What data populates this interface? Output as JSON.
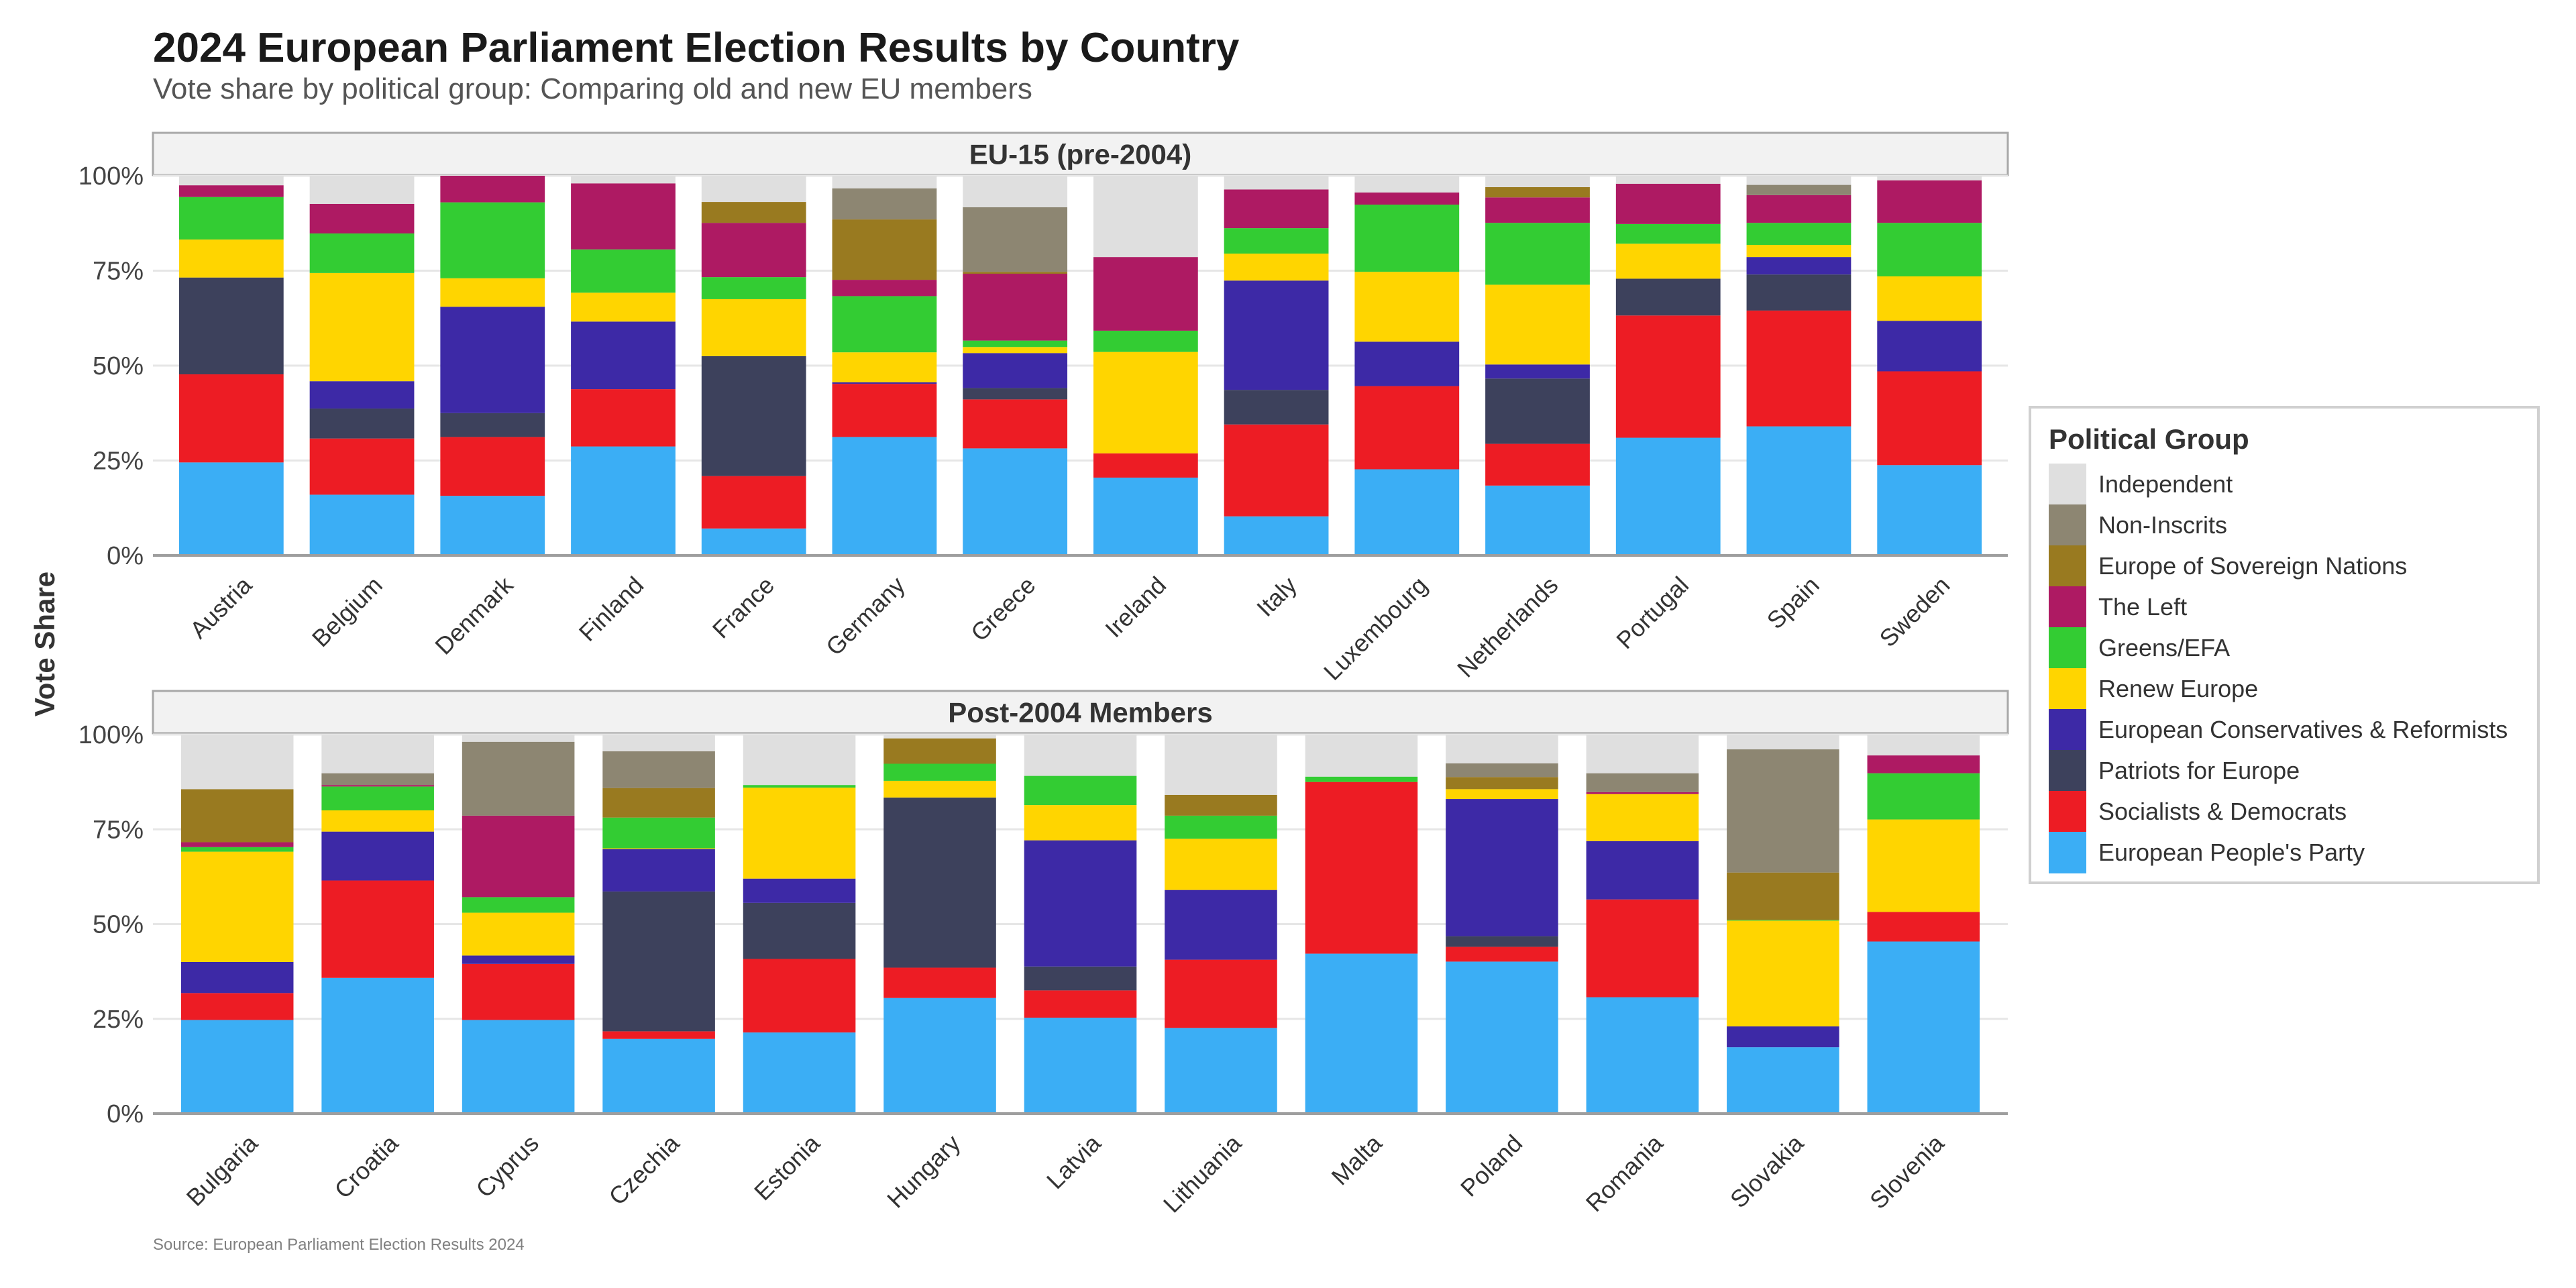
{
  "title": "2024 European Parliament Election Results by Country",
  "subtitle": "Vote share by political group: Comparing old and new EU members",
  "y_axis_label": "Vote Share",
  "source": "Source: European Parliament Election Results 2024",
  "chart_data": {
    "type": "bar",
    "stacked": true,
    "title": "2024 European Parliament Election Results by Country",
    "subtitle": "Vote share by political group: Comparing old and new EU members",
    "xlabel": "",
    "ylabel": "Vote Share",
    "ylim": [
      0,
      100
    ],
    "yticks": [
      "0%",
      "25%",
      "50%",
      "75%",
      "100%"
    ],
    "ytick_values": [
      0,
      25,
      50,
      75,
      100
    ],
    "grid": true,
    "legend": {
      "title": "Political Group",
      "placement": "right",
      "items": [
        {
          "name": "Independent",
          "color": "#DFDFDF"
        },
        {
          "name": "Non-Inscrits",
          "color": "#8D8672"
        },
        {
          "name": "Europe of Sovereign Nations",
          "color": "#997A20"
        },
        {
          "name": "The Left",
          "color": "#AE1A63"
        },
        {
          "name": "Greens/EFA",
          "color": "#33CC33"
        },
        {
          "name": "Renew Europe",
          "color": "#FFD500"
        },
        {
          "name": "European Conservatives & Reformists",
          "color": "#3D29A6"
        },
        {
          "name": "Patriots for Europe",
          "color": "#3D415C"
        },
        {
          "name": "Socialists & Democrats",
          "color": "#ED1C24"
        },
        {
          "name": "European People's Party",
          "color": "#3BAEF5"
        }
      ]
    },
    "stack_order_bottom_to_top": [
      "European People's Party",
      "Socialists & Democrats",
      "Patriots for Europe",
      "European Conservatives & Reformists",
      "Renew Europe",
      "Greens/EFA",
      "The Left",
      "Europe of Sovereign Nations",
      "Non-Inscrits",
      "Independent"
    ],
    "panels": [
      {
        "title": "EU-15 (pre-2004)",
        "categories": [
          "Austria",
          "Belgium",
          "Denmark",
          "Finland",
          "France",
          "Germany",
          "Greece",
          "Ireland",
          "Italy",
          "Luxembourg",
          "Netherlands",
          "Portugal",
          "Spain",
          "Sweden"
        ],
        "series": [
          {
            "name": "European People's Party",
            "values": [
              24.5,
              16.0,
              15.7,
              28.7,
              7.1,
              31.2,
              28.2,
              20.5,
              10.3,
              22.7,
              18.4,
              31.0,
              34.0,
              23.8
            ]
          },
          {
            "name": "Socialists & Democrats",
            "values": [
              23.2,
              14.8,
              15.5,
              15.1,
              13.8,
              14.0,
              12.9,
              6.4,
              24.2,
              21.9,
              11.0,
              32.2,
              30.5,
              24.7
            ]
          },
          {
            "name": "Patriots for Europe",
            "values": [
              25.5,
              7.9,
              6.3,
              0,
              31.6,
              0,
              3.0,
              0,
              9.1,
              0,
              17.2,
              9.7,
              9.5,
              0
            ]
          },
          {
            "name": "European Conservatives & Reformists",
            "values": [
              0,
              7.2,
              28.0,
              17.8,
              0,
              0.4,
              9.2,
              0,
              28.8,
              11.7,
              3.7,
              0,
              4.6,
              13.3
            ]
          },
          {
            "name": "Renew Europe",
            "values": [
              10.0,
              28.5,
              7.5,
              7.6,
              15.0,
              7.9,
              1.6,
              26.7,
              7.1,
              18.4,
              21.0,
              9.2,
              3.2,
              11.7
            ]
          },
          {
            "name": "Greens/EFA",
            "values": [
              11.2,
              10.4,
              20.0,
              11.4,
              5.8,
              14.8,
              1.7,
              5.6,
              6.7,
              17.7,
              16.3,
              5.2,
              5.8,
              14.1
            ]
          },
          {
            "name": "The Left",
            "values": [
              3.1,
              7.8,
              7.0,
              17.4,
              14.3,
              4.3,
              17.6,
              19.4,
              10.2,
              3.2,
              6.7,
              10.6,
              7.3,
              11.2
            ]
          },
          {
            "name": "Europe of Sovereign Nations",
            "values": [
              0,
              0,
              0,
              0,
              5.5,
              15.9,
              0.5,
              0,
              0,
              0,
              2.7,
              0,
              0,
              0
            ]
          },
          {
            "name": "Non-Inscrits",
            "values": [
              0,
              0,
              0,
              0,
              0,
              8.2,
              17.0,
              0,
              0,
              0,
              0,
              0,
              2.7,
              0
            ]
          },
          {
            "name": "Independent",
            "values": [
              2.5,
              7.4,
              0,
              2.0,
              6.9,
              3.3,
              8.3,
              21.4,
              3.6,
              4.4,
              3.0,
              2.1,
              2.4,
              1.2
            ]
          }
        ]
      },
      {
        "title": "Post-2004 Members",
        "categories": [
          "Bulgaria",
          "Croatia",
          "Cyprus",
          "Czechia",
          "Estonia",
          "Hungary",
          "Latvia",
          "Lithuania",
          "Malta",
          "Poland",
          "Romania",
          "Slovakia",
          "Slovenia"
        ],
        "series": [
          {
            "name": "European People's Party",
            "values": [
              24.7,
              35.8,
              24.7,
              19.7,
              21.4,
              30.5,
              25.3,
              22.6,
              42.2,
              40.1,
              30.7,
              17.5,
              45.4
            ]
          },
          {
            "name": "Socialists & Democrats",
            "values": [
              7.1,
              25.7,
              14.8,
              2.0,
              19.4,
              8.0,
              7.2,
              18.0,
              45.3,
              3.9,
              25.8,
              0,
              7.8
            ]
          },
          {
            "name": "Patriots for Europe",
            "values": [
              0,
              0,
              0,
              36.9,
              14.8,
              44.9,
              6.3,
              0,
              0,
              2.8,
              0,
              0,
              0
            ]
          },
          {
            "name": "European Conservatives & Reformists",
            "values": [
              8.2,
              12.9,
              2.2,
              11.2,
              6.4,
              0,
              33.3,
              18.4,
              0,
              36.2,
              15.4,
              5.5,
              0
            ]
          },
          {
            "name": "Renew Europe",
            "values": [
              29.1,
              5.6,
              11.3,
              0.2,
              24.0,
              4.4,
              9.3,
              13.5,
              0,
              2.6,
              12.4,
              27.9,
              24.4
            ]
          },
          {
            "name": "Greens/EFA",
            "values": [
              1.2,
              6.3,
              4.1,
              8.1,
              0.7,
              4.5,
              7.7,
              6.1,
              1.4,
              0,
              0,
              0.2,
              12.2
            ]
          },
          {
            "name": "The Left",
            "values": [
              1.3,
              0.4,
              21.5,
              0,
              0,
              0,
              0,
              0,
              0,
              0,
              0.5,
              0,
              4.7
            ]
          },
          {
            "name": "Europe of Sovereign Nations",
            "values": [
              14.0,
              0,
              0,
              7.8,
              0,
              6.7,
              0,
              5.5,
              0,
              3.2,
              0,
              12.5,
              0
            ]
          },
          {
            "name": "Non-Inscrits",
            "values": [
              0,
              3.1,
              19.5,
              9.7,
              0,
              0,
              0,
              0,
              0,
              3.6,
              5.0,
              32.5,
              0
            ]
          },
          {
            "name": "Independent",
            "values": [
              14.4,
              10.2,
              1.9,
              4.4,
              13.3,
              1.0,
              10.9,
              15.9,
              11.1,
              7.6,
              10.2,
              3.9,
              5.5
            ]
          }
        ]
      }
    ]
  }
}
